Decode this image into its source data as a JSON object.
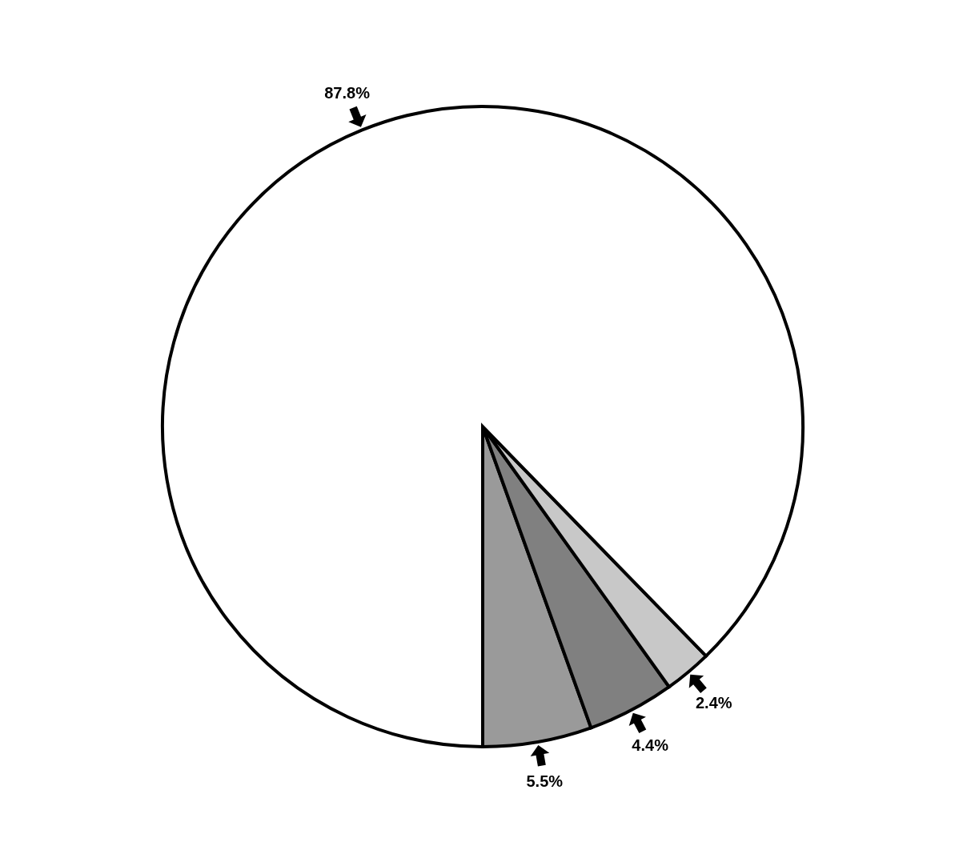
{
  "chart_data": {
    "type": "pie",
    "categories": [
      null,
      null,
      null,
      null
    ],
    "values": [
      5.5,
      4.4,
      2.4,
      87.8
    ],
    "value_labels": [
      "5.5%",
      "4.4%",
      "2.4%",
      "87.8%"
    ],
    "colors": [
      "#9a9a9a",
      "#808080",
      "#c8c8c8",
      "#ffffff"
    ],
    "legend": false
  }
}
